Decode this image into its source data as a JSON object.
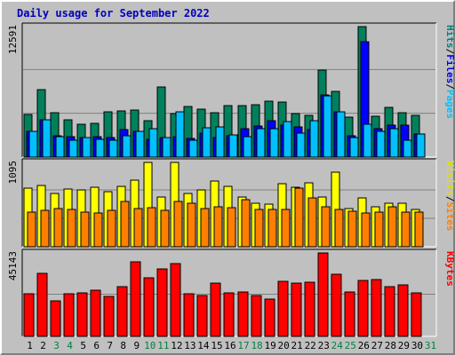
{
  "chart_data": {
    "type": "bar",
    "title": "Daily usage for September 2022",
    "days": [
      "1",
      "2",
      "3",
      "4",
      "5",
      "6",
      "7",
      "8",
      "9",
      "10",
      "11",
      "12",
      "13",
      "14",
      "15",
      "16",
      "17",
      "18",
      "19",
      "20",
      "21",
      "22",
      "23",
      "24",
      "25",
      "26",
      "27",
      "28",
      "29",
      "30",
      "31"
    ],
    "weekend_days": [
      "3",
      "4",
      "10",
      "11",
      "17",
      "18",
      "24",
      "25",
      "31"
    ],
    "panels": [
      {
        "name": "hits-files-pages",
        "max_label": "12591",
        "max": 12591,
        "right_labels": [
          "Hits",
          "/",
          "Files",
          "/",
          "Pages"
        ],
        "right_colors": [
          "#008080",
          "#000000",
          "#0000ff",
          "#000000",
          "#00c0ff"
        ],
        "series": [
          {
            "name": "Hits",
            "color": "#00805c",
            "values": [
              4120,
              6480,
              4270,
              3640,
              3190,
              3220,
              4330,
              4450,
              4570,
              3490,
              6740,
              4210,
              4850,
              4620,
              4320,
              4930,
              4990,
              5020,
              5420,
              5320,
              4190,
              3990,
              8390,
              6320,
              3820,
              12591,
              3980,
              4790,
              4310,
              4050,
              0
            ]
          },
          {
            "name": "Files",
            "color": "#0000ff",
            "values": [
              2450,
              3640,
              2080,
              1960,
              1920,
              1960,
              1920,
              2620,
              2460,
              1730,
              1850,
              1970,
              1760,
              2300,
              1920,
              2060,
              2700,
              2960,
              3500,
              3110,
              2930,
              2680,
              6010,
              4390,
              2080,
              11100,
              2730,
              3060,
              3120,
              2250,
              0
            ]
          },
          {
            "name": "Pages",
            "color": "#00c0ff",
            "values": [
              2490,
              3620,
              2010,
              1610,
              1880,
              1720,
              1630,
              2070,
              2460,
              2760,
              1920,
              4380,
              1630,
              2800,
              2880,
              2120,
              2000,
              2700,
              2760,
              3410,
              2320,
              3540,
              5880,
              4350,
              1870,
              3190,
              2470,
              2760,
              1630,
              2190,
              0
            ]
          }
        ]
      },
      {
        "name": "visits-sites",
        "max_label": "1095",
        "max": 1095,
        "right_labels": [
          "Visits",
          "/",
          "Sites"
        ],
        "right_colors": [
          "#e0e000",
          "#000000",
          "#ff8000"
        ],
        "series": [
          {
            "name": "Visits",
            "color": "#ffff00",
            "values": [
              760,
              800,
              690,
              750,
              740,
              770,
              710,
              780,
              860,
              1095,
              640,
              1095,
              690,
              740,
              850,
              780,
              650,
              570,
              550,
              820,
              770,
              830,
              650,
              970,
              490,
              630,
              520,
              570,
              560,
              480,
              0
            ]
          },
          {
            "name": "Sites",
            "color": "#ff8000",
            "values": [
              450,
              470,
              500,
              480,
              450,
              440,
              470,
              590,
              490,
              510,
              470,
              590,
              570,
              500,
              520,
              510,
              610,
              480,
              480,
              480,
              760,
              630,
              520,
              480,
              460,
              440,
              450,
              520,
              450,
              450,
              0
            ]
          }
        ]
      },
      {
        "name": "kbytes",
        "max_label": "45143",
        "max": 45143,
        "right_labels": [
          "KBytes"
        ],
        "right_colors": [
          "#ff0000"
        ],
        "series": [
          {
            "name": "KBytes",
            "color": "#ff0000",
            "values": [
              23100,
              34300,
              19100,
              23100,
              23600,
              25200,
              21400,
              27000,
              40200,
              31900,
              36300,
              39300,
              23100,
              22300,
              28800,
              23300,
              24100,
              22300,
              20300,
              30000,
              28800,
              29200,
              45143,
              33700,
              23900,
              30200,
              30600,
              26800,
              28000,
              23300,
              0
            ]
          }
        ]
      }
    ]
  }
}
